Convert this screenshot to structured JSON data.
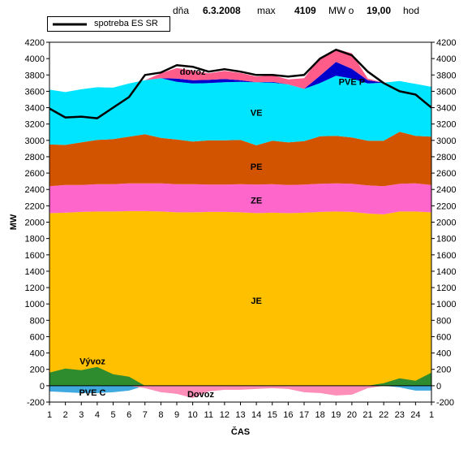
{
  "header": {
    "day_label": "dňa",
    "date": "6.3.2008",
    "max_label": "max",
    "max_value": "4109",
    "mw_label": "MW o",
    "hour_value": "19,00",
    "hour_unit": "hod"
  },
  "legend": {
    "line_label": "spotreba ES SR"
  },
  "chart_data": {
    "type": "area",
    "title": "",
    "xlabel": "ČAS",
    "ylabel": "MW",
    "ylim": [
      -200,
      4200
    ],
    "y_ticks": [
      -200,
      0,
      200,
      400,
      600,
      800,
      1000,
      1200,
      1400,
      1600,
      1800,
      2000,
      2200,
      2400,
      2600,
      2800,
      3000,
      3200,
      3400,
      3600,
      3800,
      4000,
      4200
    ],
    "x_labels": [
      "1",
      "2",
      "3",
      "4",
      "5",
      "6",
      "7",
      "8",
      "9",
      "10",
      "11",
      "12",
      "13",
      "14",
      "15",
      "16",
      "17",
      "18",
      "19",
      "20",
      "21",
      "22",
      "23",
      "24",
      "1"
    ],
    "grid": false,
    "stacked_series_positive": [
      {
        "name": "JE",
        "color": "#FFC000",
        "values": [
          2110,
          2115,
          2125,
          2130,
          2130,
          2135,
          2135,
          2130,
          2120,
          2120,
          2125,
          2125,
          2120,
          2110,
          2115,
          2110,
          2115,
          2125,
          2130,
          2125,
          2105,
          2095,
          2130,
          2130,
          2120
        ]
      },
      {
        "name": "ZE",
        "color": "#FF66CC",
        "values": [
          330,
          340,
          330,
          335,
          335,
          340,
          340,
          345,
          345,
          345,
          335,
          335,
          345,
          350,
          350,
          345,
          345,
          345,
          345,
          345,
          345,
          345,
          340,
          345,
          335
        ]
      },
      {
        "name": "PE",
        "color": "#D35400",
        "values": [
          510,
          490,
          520,
          540,
          550,
          570,
          600,
          555,
          545,
          520,
          540,
          540,
          540,
          480,
          530,
          520,
          530,
          580,
          580,
          565,
          545,
          555,
          635,
          580,
          590
        ]
      },
      {
        "name": "VE",
        "color": "#00E5FF",
        "values": [
          670,
          645,
          650,
          645,
          630,
          650,
          660,
          730,
          705,
          710,
          700,
          710,
          710,
          770,
          710,
          710,
          640,
          650,
          735,
          720,
          700,
          710,
          620,
          635,
          610
        ]
      },
      {
        "name": "PVE P",
        "color": "#0000CC",
        "values": [
          0,
          0,
          0,
          0,
          0,
          0,
          0,
          0,
          40,
          40,
          40,
          40,
          20,
          0,
          10,
          0,
          0,
          90,
          170,
          120,
          40,
          0,
          0,
          0,
          0
        ]
      },
      {
        "name": "dovoz",
        "color": "#FF5C8A",
        "values": [
          0,
          0,
          0,
          0,
          0,
          0,
          0,
          60,
          130,
          120,
          80,
          100,
          90,
          70,
          80,
          60,
          130,
          220,
          160,
          190,
          20,
          0,
          0,
          0,
          0
        ]
      }
    ],
    "stacked_series_negative": [
      {
        "name": "Vývoz",
        "color": "#2E8B2E",
        "values": [
          160,
          210,
          190,
          230,
          140,
          110,
          0,
          0,
          0,
          0,
          0,
          0,
          0,
          0,
          0,
          0,
          0,
          0,
          0,
          0,
          0,
          30,
          90,
          60,
          160
        ]
      },
      {
        "name": "PVE C",
        "color": "#3FA9E0",
        "values": [
          -70,
          -80,
          -90,
          -90,
          -80,
          -60,
          0,
          0,
          0,
          0,
          0,
          0,
          0,
          0,
          0,
          0,
          0,
          0,
          0,
          0,
          0,
          0,
          -20,
          -60,
          -60
        ]
      },
      {
        "name": "Dovoz",
        "color": "#FF8FB8",
        "values": [
          0,
          0,
          0,
          0,
          0,
          0,
          -30,
          -80,
          -100,
          -150,
          -70,
          -50,
          -50,
          -40,
          -30,
          -40,
          -80,
          -90,
          -120,
          -110,
          -30,
          0,
          0,
          0,
          0
        ]
      }
    ],
    "line_series": {
      "name": "spotreba ES SR",
      "color": "#000000",
      "values": [
        3390,
        3280,
        3290,
        3270,
        3400,
        3530,
        3800,
        3830,
        3920,
        3900,
        3840,
        3870,
        3840,
        3800,
        3800,
        3780,
        3800,
        4000,
        4109,
        4040,
        3840,
        3700,
        3600,
        3560,
        3400
      ]
    },
    "annotations": [
      {
        "text": "VE",
        "x": 14,
        "y": 3340
      },
      {
        "text": "PE",
        "x": 14,
        "y": 2680
      },
      {
        "text": "ZE",
        "x": 14,
        "y": 2270
      },
      {
        "text": "JE",
        "x": 14,
        "y": 1040
      },
      {
        "text": "PVE P",
        "x": 20,
        "y": 3720
      },
      {
        "text": "dovoz",
        "x": 10,
        "y": 3840
      },
      {
        "text": "Vývoz",
        "x": 3.7,
        "y": 300
      },
      {
        "text": "PVE C",
        "x": 3.7,
        "y": -80
      },
      {
        "text": "Dovoz",
        "x": 10.5,
        "y": -100
      }
    ]
  }
}
